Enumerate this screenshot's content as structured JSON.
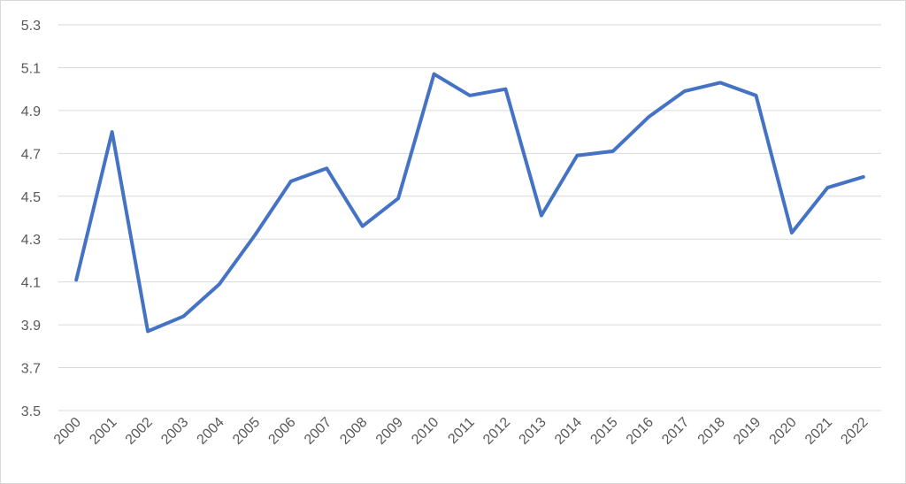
{
  "chart_data": {
    "type": "line",
    "categories": [
      "2000",
      "2001",
      "2002",
      "2003",
      "2004",
      "2005",
      "2006",
      "2007",
      "2008",
      "2009",
      "2010",
      "2011",
      "2012",
      "2013",
      "2014",
      "2015",
      "2016",
      "2017",
      "2018",
      "2019",
      "2020",
      "2021",
      "2022"
    ],
    "values": [
      4.11,
      4.8,
      3.87,
      3.94,
      4.09,
      4.32,
      4.57,
      4.63,
      4.36,
      4.49,
      5.07,
      4.97,
      5.0,
      4.41,
      4.69,
      4.71,
      4.87,
      4.99,
      5.03,
      4.97,
      4.33,
      4.54,
      4.59
    ],
    "color": "#4472c4",
    "ylim": [
      3.5,
      5.3
    ],
    "yticks": [
      3.5,
      3.7,
      3.9,
      4.1,
      4.3,
      4.5,
      4.7,
      4.9,
      5.1,
      5.3
    ],
    "grid": true
  }
}
